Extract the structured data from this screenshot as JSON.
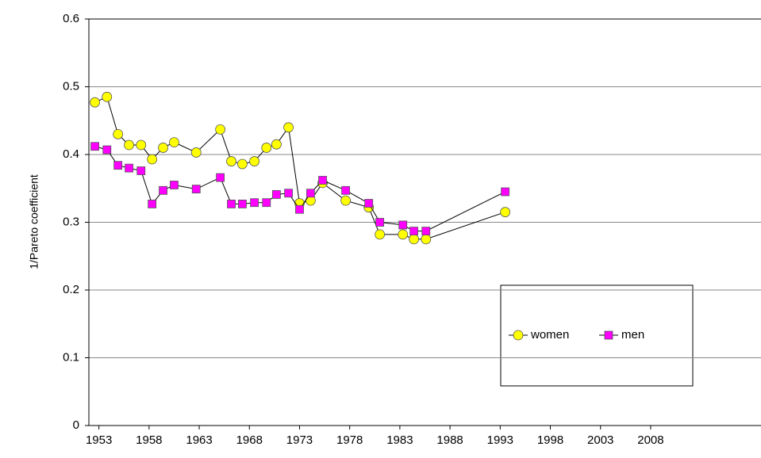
{
  "chart_data": {
    "type": "line",
    "y_label": "1/Pareto coefficient",
    "x": [
      1952.6,
      1953.8,
      1954.9,
      1956.0,
      1957.2,
      1958.3,
      1959.4,
      1960.5,
      1962.7,
      1965.1,
      1966.2,
      1967.3,
      1968.5,
      1969.7,
      1970.7,
      1971.9,
      1973.0,
      1974.1,
      1975.3,
      1977.6,
      1979.9,
      1981.0,
      1983.3,
      1984.4,
      1985.6,
      1993.5
    ],
    "series": [
      {
        "name": "women",
        "color": "#ffff00",
        "marker": "circle",
        "values": [
          0.477,
          0.485,
          0.43,
          0.414,
          0.414,
          0.393,
          0.41,
          0.418,
          0.403,
          0.437,
          0.39,
          0.386,
          0.39,
          0.41,
          0.415,
          0.44,
          0.328,
          0.332,
          0.358,
          0.332,
          0.322,
          0.282,
          0.282,
          0.275,
          0.275,
          0.315
        ]
      },
      {
        "name": "men",
        "color": "#ff00ff",
        "marker": "square",
        "values": [
          0.412,
          0.407,
          0.384,
          0.38,
          0.376,
          0.327,
          0.347,
          0.355,
          0.349,
          0.366,
          0.327,
          0.327,
          0.329,
          0.329,
          0.341,
          0.343,
          0.319,
          0.343,
          0.362,
          0.347,
          0.328,
          0.3,
          0.296,
          0.287,
          0.287,
          0.345
        ]
      }
    ],
    "xlim": [
      1952,
      2019
    ],
    "xticks": [
      1953,
      1958,
      1963,
      1968,
      1973,
      1978,
      1983,
      1988,
      1993,
      1998,
      2003,
      2008
    ],
    "ylim": [
      0,
      0.6
    ],
    "yticks": [
      0,
      0.1,
      0.2,
      0.3,
      0.4,
      0.5,
      0.6
    ],
    "grid": true
  }
}
